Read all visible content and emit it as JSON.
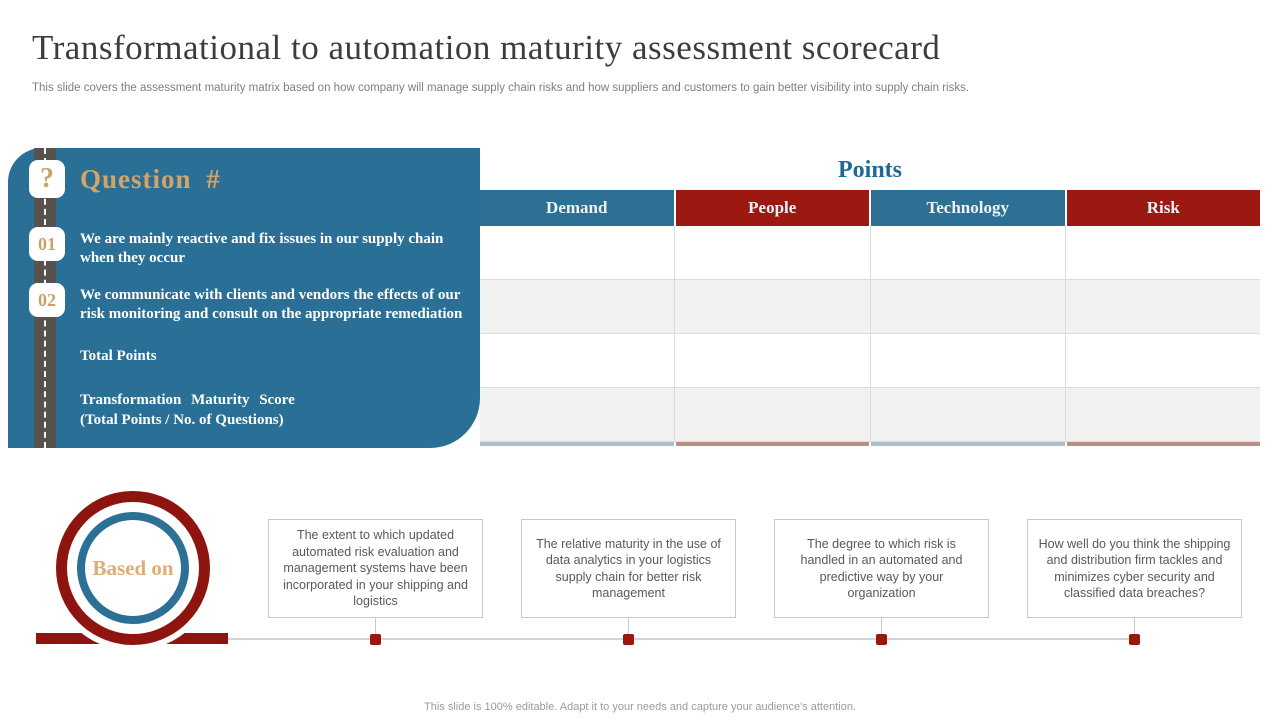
{
  "slide": {
    "title": "Transformational to automation maturity assessment scorecard",
    "subtitle": "This slide covers the assessment maturity matrix based on how company will manage supply chain risks and how suppliers and customers to gain better visibility into supply chain risks.",
    "footer": "This slide is 100% editable. Adapt it to your needs and capture your audience's attention."
  },
  "question_panel": {
    "icon_glyph": "?",
    "title": "Question #",
    "items": [
      {
        "number": "01",
        "text": "We are mainly reactive and fix issues in our supply chain when they occur"
      },
      {
        "number": "02",
        "text": "We communicate with clients and vendors the effects of our risk monitoring and consult on the appropriate remediation"
      }
    ],
    "total_points_label": "Total Points",
    "maturity_score_line1": "Transformation Maturity Score",
    "maturity_score_line2": "(Total Points / No. of Questions)"
  },
  "points_table": {
    "title": "Points",
    "columns": [
      {
        "label": "Demand",
        "header_color": "#2C7095",
        "underline_color": "#A9C0CE"
      },
      {
        "label": "People",
        "header_color": "#9C1912",
        "underline_color": "#BA9086"
      },
      {
        "label": "Technology",
        "header_color": "#2C7095",
        "underline_color": "#A9C0CE"
      },
      {
        "label": "Risk",
        "header_color": "#9C1912",
        "underline_color": "#BA9086"
      }
    ],
    "row_count": 4,
    "rows": [
      [
        "",
        "",
        "",
        ""
      ],
      [
        "",
        "",
        "",
        ""
      ],
      [
        "",
        "",
        "",
        ""
      ],
      [
        "",
        "",
        "",
        ""
      ]
    ]
  },
  "based_on": {
    "label": "Based on",
    "descriptions": [
      "The extent to which updated automated risk evaluation and management systems have been incorporated in your shipping and logistics",
      "The relative maturity in the use of data analytics in your logistics supply chain for better risk management",
      "The degree to which risk is handled in an automated and predictive way by your organization",
      "How well do you think the shipping and distribution firm tackles and minimizes cyber security and classified data breaches?"
    ]
  },
  "colors": {
    "panel_blue": "#2A7096",
    "header_blue": "#2C7095",
    "header_red": "#9C1912",
    "circle_red": "#8E1410",
    "accent_tan": "#D2A469",
    "road_gray": "#57524D"
  }
}
